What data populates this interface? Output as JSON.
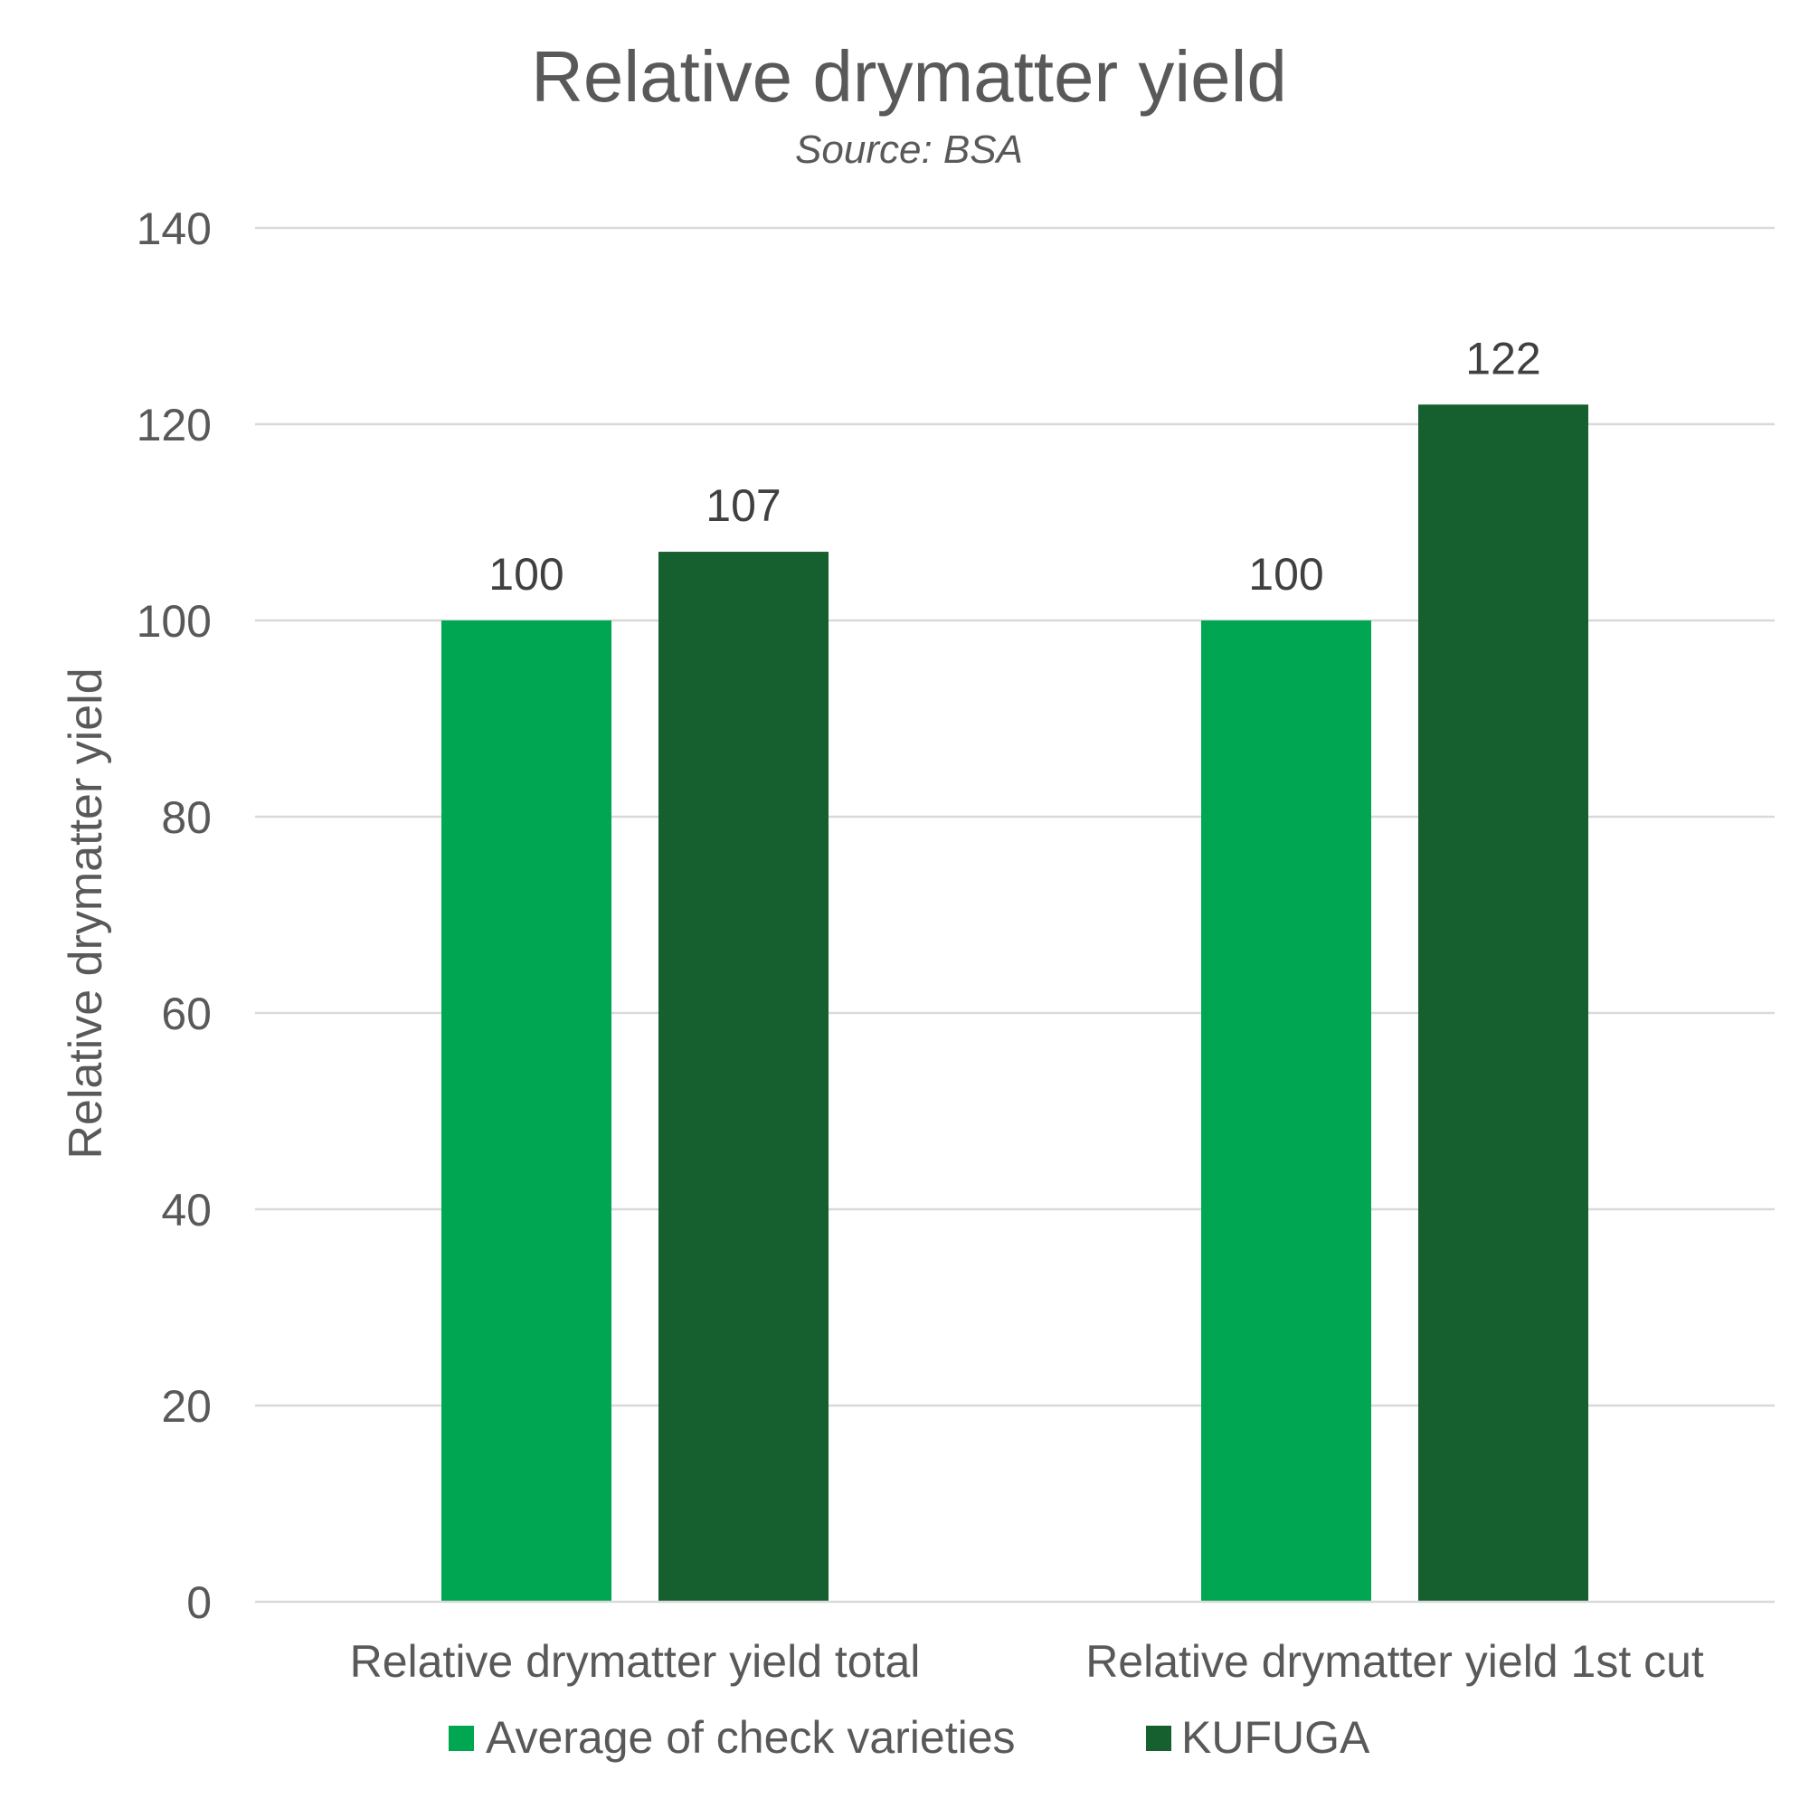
{
  "chart_data": {
    "type": "bar",
    "title": "Relative drymatter yield",
    "subtitle": "Source: BSA",
    "xlabel": "",
    "ylabel": "Relative drymatter yield",
    "ylim": [
      0,
      140
    ],
    "yticks": [
      0,
      20,
      40,
      60,
      80,
      100,
      120,
      140
    ],
    "grid": true,
    "legend_position": "bottom",
    "categories": [
      "Relative drymatter yield total",
      "Relative drymatter yield 1st cut"
    ],
    "series": [
      {
        "name": "Average of check varieties",
        "color": "#00a651",
        "values": [
          100,
          100
        ]
      },
      {
        "name": "KUFUGA",
        "color": "#16602f",
        "values": [
          107,
          122
        ]
      }
    ]
  }
}
